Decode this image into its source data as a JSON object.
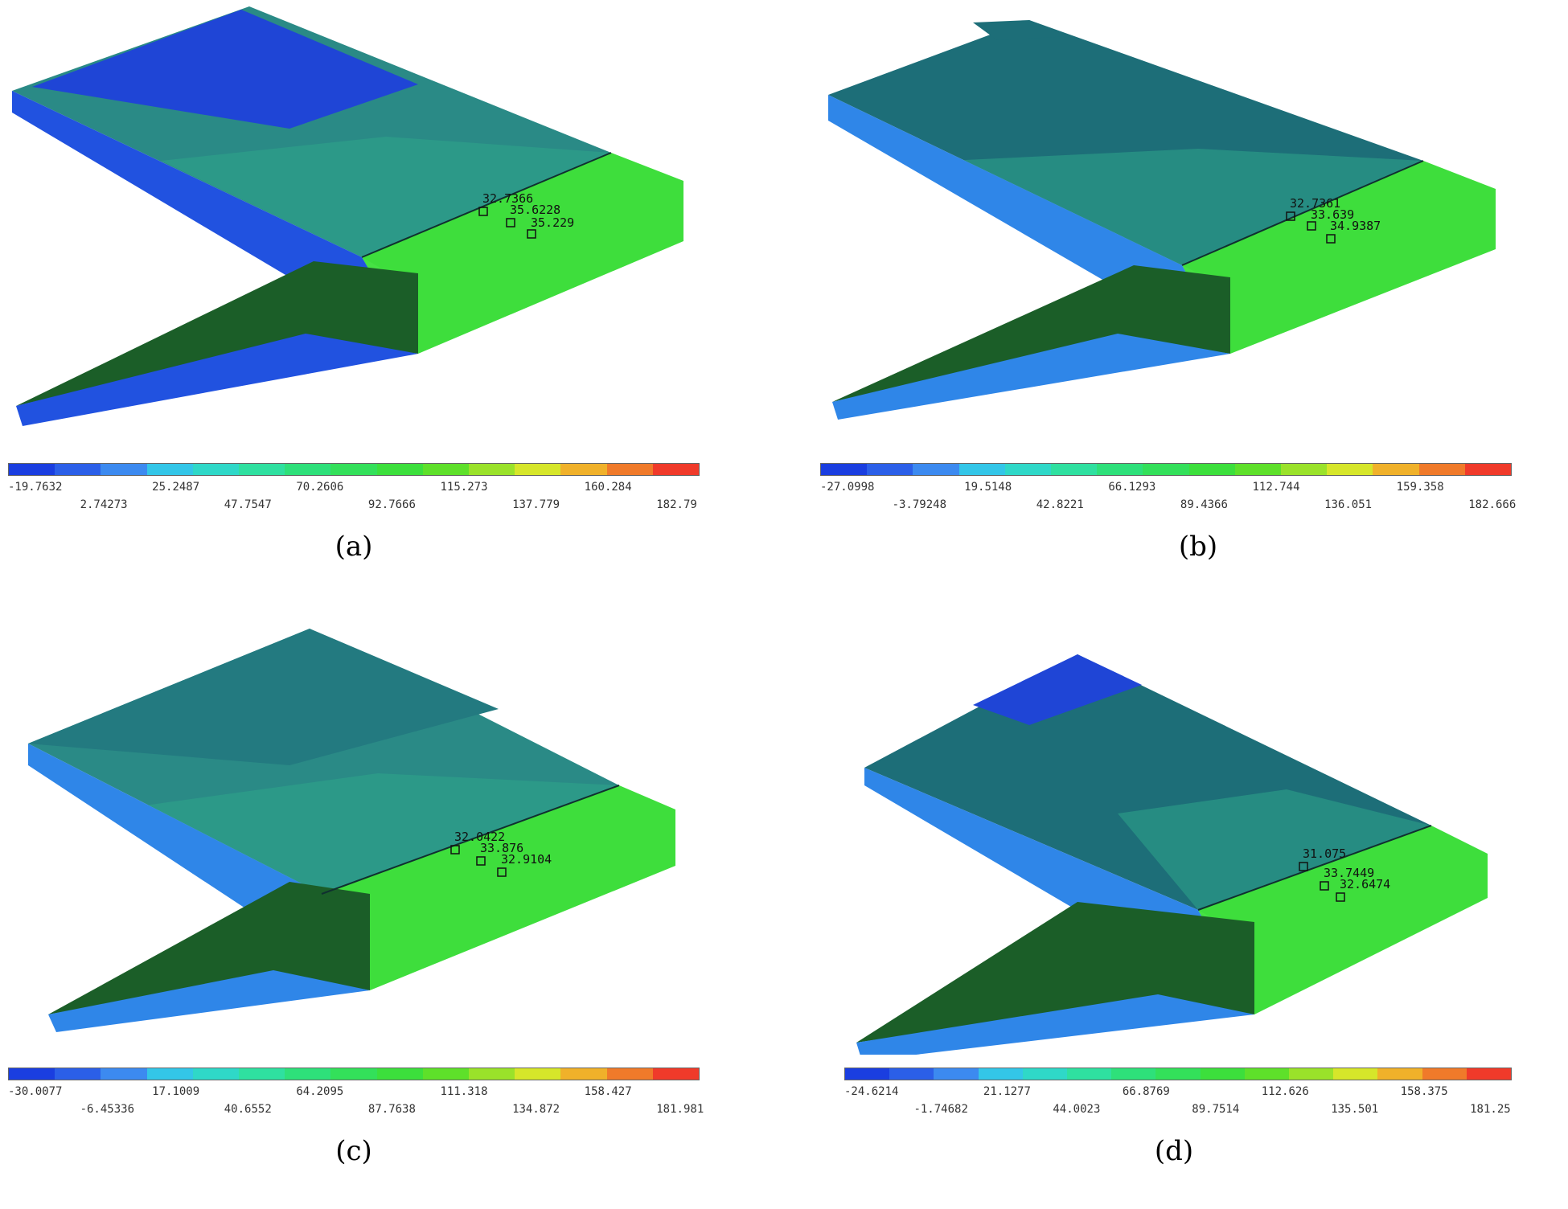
{
  "colormap": [
    "#1a3ee0",
    "#2b5fe8",
    "#3c8af0",
    "#33c6e8",
    "#2fd8c8",
    "#2fe0a0",
    "#2ee07a",
    "#33e05a",
    "#3cdf3c",
    "#5ee02a",
    "#9ae22a",
    "#d6e62a",
    "#f0b12a",
    "#f07a2a",
    "#f03a2a"
  ],
  "panels": [
    {
      "label": "(a)",
      "scale_top": [
        "-19.7632",
        "25.2487",
        "70.2606",
        "115.273",
        "160.284"
      ],
      "scale_bottom": [
        "2.74273",
        "47.7547",
        "92.7666",
        "137.779",
        "182.79"
      ],
      "probes": [
        "32.7366",
        "35.6228",
        "35.229"
      ],
      "top_color": "#2a8a86",
      "upper_band": "#1f45d6",
      "edge_color": "#2152e0"
    },
    {
      "label": "(b)",
      "scale_top": [
        "-27.0998",
        "19.5148",
        "66.1293",
        "112.744",
        "159.358"
      ],
      "scale_bottom": [
        "-3.79248",
        "42.8221",
        "89.4366",
        "136.051",
        "182.666"
      ],
      "probes": [
        "32.7361",
        "33.639",
        "34.9387"
      ],
      "top_color": "#1d6e78",
      "upper_band": "#1d6e78",
      "edge_color": "#2f86e8"
    },
    {
      "label": "(c)",
      "scale_top": [
        "-30.0077",
        "17.1009",
        "64.2095",
        "111.318",
        "158.427"
      ],
      "scale_bottom": [
        "-6.45336",
        "40.6552",
        "87.7638",
        "134.872",
        "181.981"
      ],
      "probes": [
        "32.0422",
        "33.876",
        "32.9104"
      ],
      "top_color": "#2a8a86",
      "upper_band": "#237a80",
      "edge_color": "#2f86e8"
    },
    {
      "label": "(d)",
      "scale_top": [
        "-24.6214",
        "21.1277",
        "66.8769",
        "112.626",
        "158.375"
      ],
      "scale_bottom": [
        "-1.74682",
        "44.0023",
        "89.7514",
        "135.501",
        "181.25"
      ],
      "probes": [
        "31.075",
        "33.7449",
        "32.6474"
      ],
      "top_color": "#1d6e78",
      "upper_band": "#1f45d6",
      "edge_color": "#2f86e8"
    }
  ]
}
